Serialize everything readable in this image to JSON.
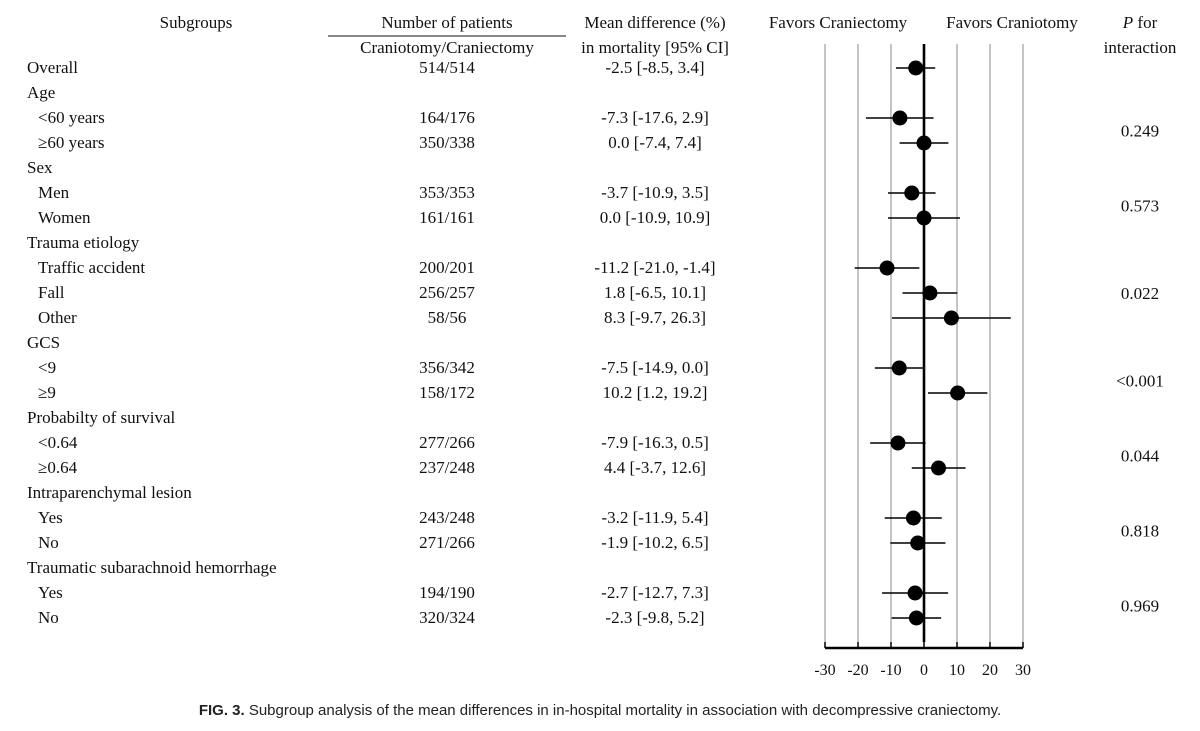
{
  "headers": {
    "subgroups": "Subgroups",
    "patients_title": "Number of patients",
    "patients_sub": "Craniotomy/Craniectomy",
    "md_title": "Mean difference (%)",
    "md_sub": "in mortality [95% CI]",
    "favors_left": "Favors Craniectomy",
    "favors_right": "Favors Craniotomy",
    "p_italic": "P",
    "p_rest": " for",
    "p_line2": "interaction"
  },
  "caption": {
    "label": "FIG. 3.",
    "text": " Subgroup analysis of the mean differences in in-hospital mortality in association with decompressive craniectomy."
  },
  "chart_data": {
    "type": "forest",
    "xlim": [
      -30,
      30
    ],
    "xticks": [
      -30,
      -20,
      -10,
      0,
      10,
      20,
      30
    ],
    "tick_labels": [
      "-30",
      "-20",
      "-10",
      "0",
      "10",
      "20",
      "30"
    ],
    "grid": true,
    "rows": [
      {
        "label": "Overall",
        "indent": false,
        "patients": "514/514",
        "ci_text": "-2.5 [-8.5, 3.4]",
        "estimate": -2.5,
        "lower": -8.5,
        "upper": 3.4
      },
      {
        "label": "Age",
        "indent": false,
        "header": true
      },
      {
        "label": "<60 years",
        "indent": true,
        "patients": "164/176",
        "ci_text": "-7.3 [-17.6, 2.9]",
        "estimate": -7.3,
        "lower": -17.6,
        "upper": 2.9
      },
      {
        "label": "≥60 years",
        "indent": true,
        "patients": "350/338",
        "ci_text": "0.0 [-7.4, 7.4]",
        "estimate": 0.0,
        "lower": -7.4,
        "upper": 7.4
      },
      {
        "label": "Sex",
        "indent": false,
        "header": true
      },
      {
        "label": "Men",
        "indent": true,
        "patients": "353/353",
        "ci_text": "-3.7 [-10.9, 3.5]",
        "estimate": -3.7,
        "lower": -10.9,
        "upper": 3.5
      },
      {
        "label": "Women",
        "indent": true,
        "patients": "161/161",
        "ci_text": "0.0 [-10.9, 10.9]",
        "estimate": 0.0,
        "lower": -10.9,
        "upper": 10.9
      },
      {
        "label": "Trauma etiology",
        "indent": false,
        "header": true
      },
      {
        "label": "Traffic accident",
        "indent": true,
        "patients": "200/201",
        "ci_text": "-11.2 [-21.0, -1.4]",
        "estimate": -11.2,
        "lower": -21.0,
        "upper": -1.4
      },
      {
        "label": "Fall",
        "indent": true,
        "patients": "256/257",
        "ci_text": "1.8 [-6.5, 10.1]",
        "estimate": 1.8,
        "lower": -6.5,
        "upper": 10.1
      },
      {
        "label": "Other",
        "indent": true,
        "patients": "58/56",
        "ci_text": "8.3 [-9.7, 26.3]",
        "estimate": 8.3,
        "lower": -9.7,
        "upper": 26.3
      },
      {
        "label": "GCS",
        "indent": false,
        "header": true
      },
      {
        "label": "<9",
        "indent": true,
        "patients": "356/342",
        "ci_text": "-7.5 [-14.9, 0.0]",
        "estimate": -7.5,
        "lower": -14.9,
        "upper": 0.0
      },
      {
        "label": "≥9",
        "indent": true,
        "patients": "158/172",
        "ci_text": "10.2 [1.2, 19.2]",
        "estimate": 10.2,
        "lower": 1.2,
        "upper": 19.2
      },
      {
        "label": "Probabilty of survival",
        "indent": false,
        "header": true
      },
      {
        "label": "<0.64",
        "indent": true,
        "patients": "277/266",
        "ci_text": "-7.9 [-16.3, 0.5]",
        "estimate": -7.9,
        "lower": -16.3,
        "upper": 0.5
      },
      {
        "label": "≥0.64",
        "indent": true,
        "patients": "237/248",
        "ci_text": "4.4 [-3.7, 12.6]",
        "estimate": 4.4,
        "lower": -3.7,
        "upper": 12.6
      },
      {
        "label": "Intraparenchymal lesion",
        "indent": false,
        "header": true
      },
      {
        "label": "Yes",
        "indent": true,
        "patients": "243/248",
        "ci_text": "-3.2 [-11.9, 5.4]",
        "estimate": -3.2,
        "lower": -11.9,
        "upper": 5.4
      },
      {
        "label": "No",
        "indent": true,
        "patients": "271/266",
        "ci_text": "-1.9 [-10.2, 6.5]",
        "estimate": -1.9,
        "lower": -10.2,
        "upper": 6.5
      },
      {
        "label": "Traumatic subarachnoid hemorrhage",
        "indent": false,
        "header": true
      },
      {
        "label": "Yes",
        "indent": true,
        "patients": "194/190",
        "ci_text": "-2.7 [-12.7, 7.3]",
        "estimate": -2.7,
        "lower": -12.7,
        "upper": 7.3
      },
      {
        "label": "No",
        "indent": true,
        "patients": "320/324",
        "ci_text": "-2.3 [-9.8, 5.2]",
        "estimate": -2.3,
        "lower": -9.8,
        "upper": 5.2
      }
    ],
    "interaction_p": [
      {
        "value": "0.249",
        "rows": [
          2,
          3
        ]
      },
      {
        "value": "0.573",
        "rows": [
          5,
          6
        ]
      },
      {
        "value": "0.022",
        "rows": [
          8,
          10
        ]
      },
      {
        "value": "<0.001",
        "rows": [
          12,
          13
        ]
      },
      {
        "value": "0.044",
        "rows": [
          15,
          16
        ]
      },
      {
        "value": "0.818",
        "rows": [
          18,
          19
        ]
      },
      {
        "value": "0.969",
        "rows": [
          21,
          22
        ]
      }
    ]
  }
}
